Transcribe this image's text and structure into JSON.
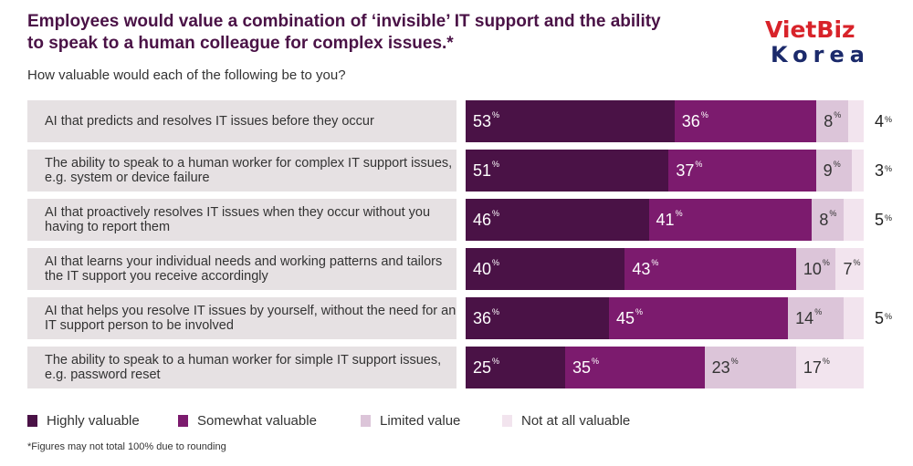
{
  "title": "Employees would value a combination of ‘invisible’ IT support and the ability to speak to a human colleague for complex issues.*",
  "subtitle": "How valuable would each of the following be to you?",
  "logo": {
    "line1": "VietBiz",
    "line2": "Korea"
  },
  "footnote": "*Figures may not total 100% due to rounding",
  "colors": {
    "highly": "#4a1246",
    "somewhat": "#7c1b6e",
    "limited": "#dcc5d9",
    "not_at_all": "#f2e4ee"
  },
  "chart_data": {
    "type": "bar",
    "orientation": "horizontal",
    "stacked": true,
    "categories": [
      "AI that predicts and resolves IT issues before they occur",
      "The ability to speak to a human worker for complex IT support issues, e.g. system or device failure",
      "AI that proactively resolves IT issues when they occur without you having to report them",
      "AI that learns your individual needs and working patterns and tailors the IT support you receive accordingly",
      "AI that helps you resolve IT issues by yourself, without the need for an IT support person to be involved",
      "The ability to speak to a human worker for simple IT support issues, e.g. password reset"
    ],
    "series": [
      {
        "name": "Highly valuable",
        "values": [
          53,
          51,
          46,
          40,
          36,
          25
        ]
      },
      {
        "name": "Somewhat valuable",
        "values": [
          36,
          37,
          41,
          43,
          45,
          35
        ]
      },
      {
        "name": "Limited value",
        "values": [
          8,
          9,
          8,
          10,
          14,
          23
        ]
      },
      {
        "name": "Not at all valuable",
        "values": [
          4,
          3,
          5,
          7,
          5,
          17
        ]
      }
    ],
    "unit": "%",
    "legend_position": "bottom"
  }
}
